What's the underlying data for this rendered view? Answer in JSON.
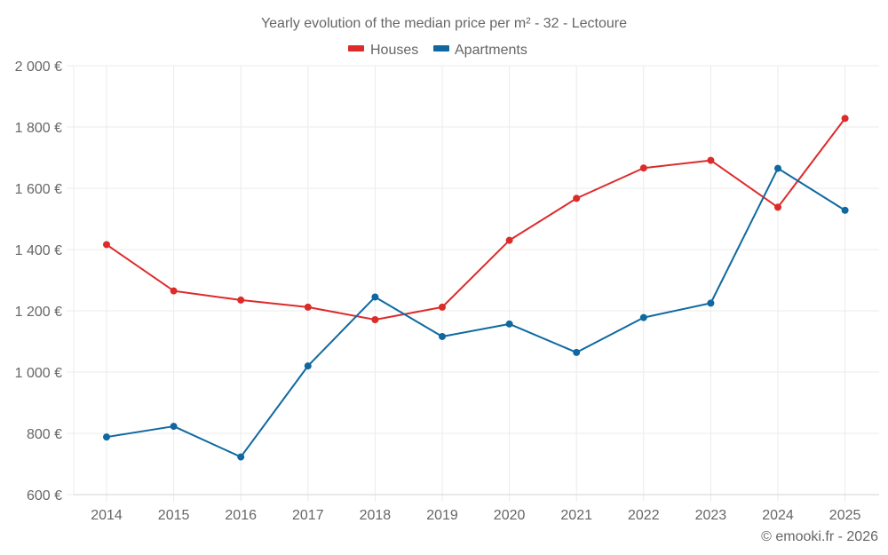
{
  "chart_data": {
    "type": "line",
    "title": "Yearly evolution of the median price per m² - 32 - Lectoure",
    "xlabel": "",
    "ylabel": "",
    "x": [
      "2014",
      "2015",
      "2016",
      "2017",
      "2018",
      "2019",
      "2020",
      "2021",
      "2022",
      "2023",
      "2024",
      "2025"
    ],
    "ylim": [
      600,
      2000
    ],
    "yticks": [
      600,
      800,
      1000,
      1200,
      1400,
      1600,
      1800,
      2000
    ],
    "ytick_labels": [
      "600 €",
      "800 €",
      "1 000 €",
      "1 200 €",
      "1 400 €",
      "1 600 €",
      "1 800 €",
      "2 000 €"
    ],
    "grid": true,
    "legend_position": "top-center",
    "series": [
      {
        "name": "Houses",
        "color": "#dd2b2b",
        "values": [
          1416,
          1265,
          1235,
          1212,
          1171,
          1212,
          1430,
          1567,
          1666,
          1691,
          1538,
          1828
        ]
      },
      {
        "name": "Apartments",
        "color": "#0f69a0",
        "values": [
          788,
          823,
          723,
          1020,
          1245,
          1116,
          1157,
          1064,
          1178,
          1225,
          1665,
          1528
        ]
      }
    ],
    "credit": "© emooki.fr - 2026"
  }
}
